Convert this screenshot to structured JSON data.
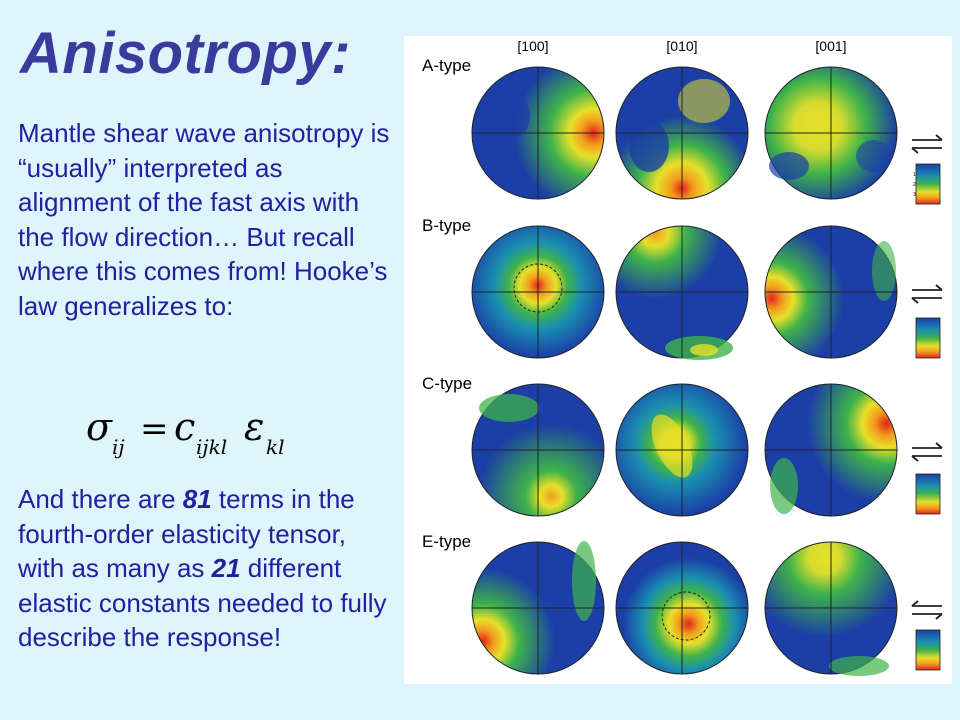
{
  "title": "Anisotropy:",
  "paragraph1": "Mantle shear wave anisotropy is “usually” interpreted as alignment of the fast axis with the flow direction… But recall where this comes from! Hooke’s law generalizes to:",
  "equation": {
    "sigma": "σ",
    "sigma_sub": "ij",
    "equals": "=",
    "c": "c",
    "c_sub": "ijkl",
    "eps": "ε",
    "eps_sub": "kl"
  },
  "paragraph2": {
    "part1": "And there are ",
    "num1": "81",
    "part2": " terms in the fourth-order elasticity tensor, with as many as ",
    "num2": "21",
    "part3": " different elastic constants needed to fully describe the response!"
  },
  "figure": {
    "columns": [
      "[100]",
      "[010]",
      "[001]"
    ],
    "rows": [
      "A-type",
      "B-type",
      "C-type",
      "E-type"
    ],
    "scale_labels": [
      "1",
      "2",
      "3"
    ],
    "colors": {
      "blue": "#1b3fa6",
      "cyan": "#1a8fb0",
      "green": "#3fb34a",
      "yellow": "#e8e02a",
      "orange": "#f29a1e",
      "red": "#e3241c"
    }
  }
}
